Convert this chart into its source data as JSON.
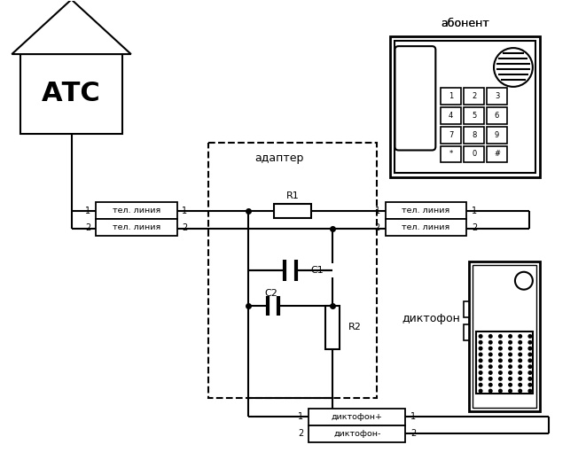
{
  "background_color": "#ffffff",
  "text_color": "#000000",
  "labels": {
    "atc": "АТС",
    "abonent": "абонент",
    "adapter": "адаптер",
    "diktofon": "диктофон",
    "tel_line": "тел. линия",
    "diktofon_plus": "диктофон+",
    "diktofon_minus": "диктофон-",
    "R1": "R1",
    "R2": "R2",
    "C1": "C1",
    "C2": "C2"
  },
  "figsize": [
    6.61,
    5.28
  ],
  "dpi": 100
}
